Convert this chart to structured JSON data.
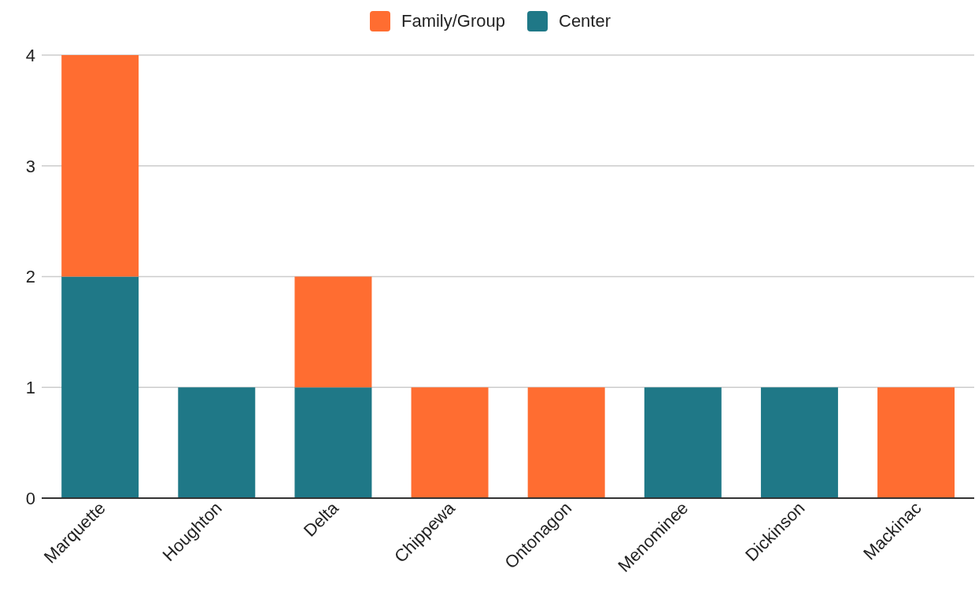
{
  "chart_data": {
    "type": "bar",
    "stacked": true,
    "categories": [
      "Marquette",
      "Houghton",
      "Delta",
      "Chippewa",
      "Ontonagon",
      "Menominee",
      "Dickinson",
      "Mackinac"
    ],
    "series": [
      {
        "name": "Center",
        "color": "#1f7887",
        "values": [
          2,
          1,
          1,
          null,
          null,
          1,
          1,
          null
        ]
      },
      {
        "name": "Family/Group",
        "color": "#ff6d31",
        "values": [
          2,
          null,
          1,
          1,
          1,
          null,
          null,
          1
        ]
      }
    ],
    "ylim": [
      0,
      4
    ],
    "yticks": [
      0,
      1,
      2,
      3,
      4
    ],
    "grid": "y",
    "legend": "top"
  }
}
